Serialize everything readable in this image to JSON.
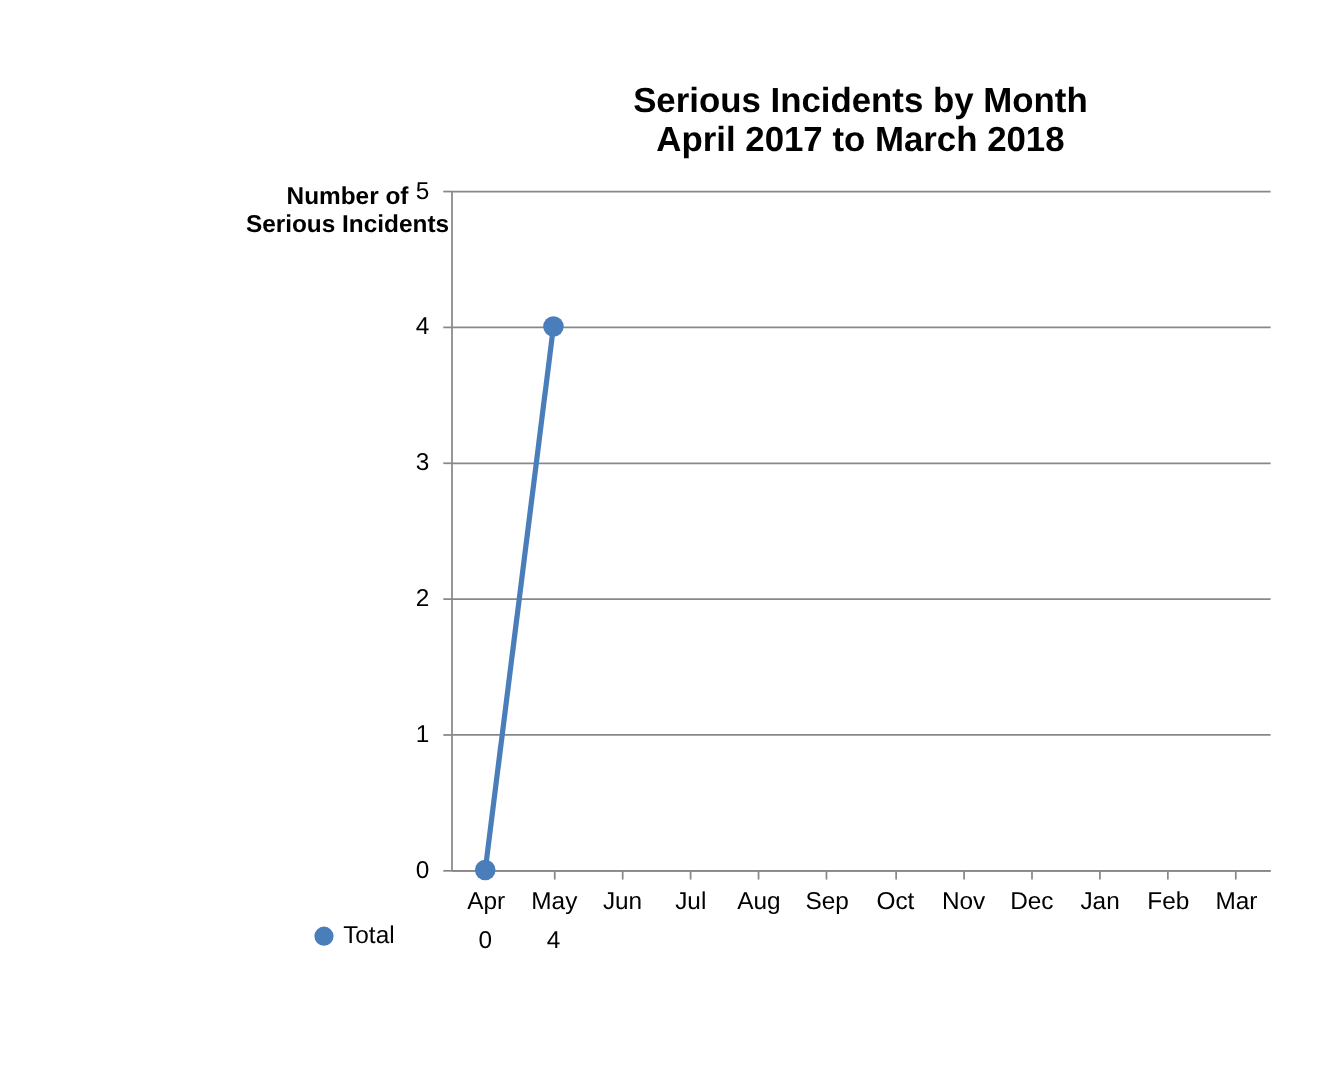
{
  "chart_data": {
    "type": "line",
    "title": [
      "Serious Incidents by Month",
      "April 2017 to March 2018"
    ],
    "ylabel": [
      "Number of",
      "Serious Incidents"
    ],
    "categories": [
      "Apr",
      "May",
      "Jun",
      "Jul",
      "Aug",
      "Sep",
      "Oct",
      "Nov",
      "Dec",
      "Jan",
      "Feb",
      "Mar"
    ],
    "series": [
      {
        "name": "Total",
        "color": "#4a7ebb",
        "values": [
          0,
          4,
          null,
          null,
          null,
          null,
          null,
          null,
          null,
          null,
          null,
          null
        ]
      }
    ],
    "ylim": [
      0,
      5
    ],
    "yticks": [
      0,
      1,
      2,
      3,
      4,
      5
    ],
    "grid": "y",
    "marker": "circle",
    "line_style": "solid",
    "legend": "bottom",
    "data_labels": true
  }
}
